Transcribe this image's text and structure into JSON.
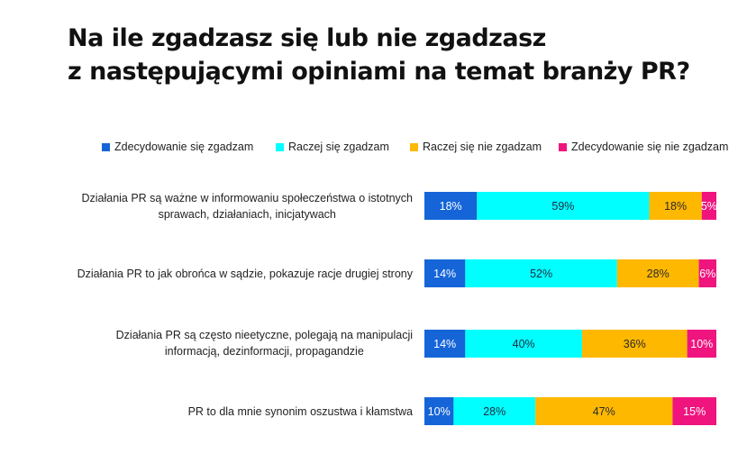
{
  "chart_data": {
    "type": "bar",
    "orientation": "horizontal",
    "stacked": true,
    "title_lines": [
      "Na ile zgadzasz się lub nie zgadzasz",
      "z następującymi opiniami na temat branży PR?"
    ],
    "categories": [
      [
        "Działania PR są ważne w informowaniu społeczeństwa o istotnych",
        "sprawach, działaniach, inicjatywach"
      ],
      [
        "Działania PR to jak obrońca w sądzie, pokazuje racje drugiej strony"
      ],
      [
        "Działania PR są często nieetyczne, polegają na manipulacji",
        "informacją, dezinformacji, propagandzie"
      ],
      [
        "PR to dla mnie synonim oszustwa i kłamstwa"
      ]
    ],
    "series": [
      {
        "name": "Zdecydowanie się zgadzam",
        "color": "#1565d8",
        "label_color": "#ffffff",
        "values": [
          18,
          14,
          14,
          10
        ]
      },
      {
        "name": "Raczej się zgadzam",
        "color": "#00ffff",
        "label_color": "#1a2a40",
        "values": [
          59,
          52,
          40,
          28
        ]
      },
      {
        "name": "Raczej się nie zgadzam",
        "color": "#ffb800",
        "label_color": "#2a2a2a",
        "values": [
          18,
          28,
          36,
          47
        ]
      },
      {
        "name": "Zdecydowanie się nie zgadzam",
        "color": "#f0147e",
        "label_color": "#ffffff",
        "values": [
          5,
          6,
          10,
          15
        ]
      }
    ],
    "value_suffix": "%",
    "xlim": [
      0,
      100
    ],
    "legend_position": "top",
    "grid": false
  }
}
